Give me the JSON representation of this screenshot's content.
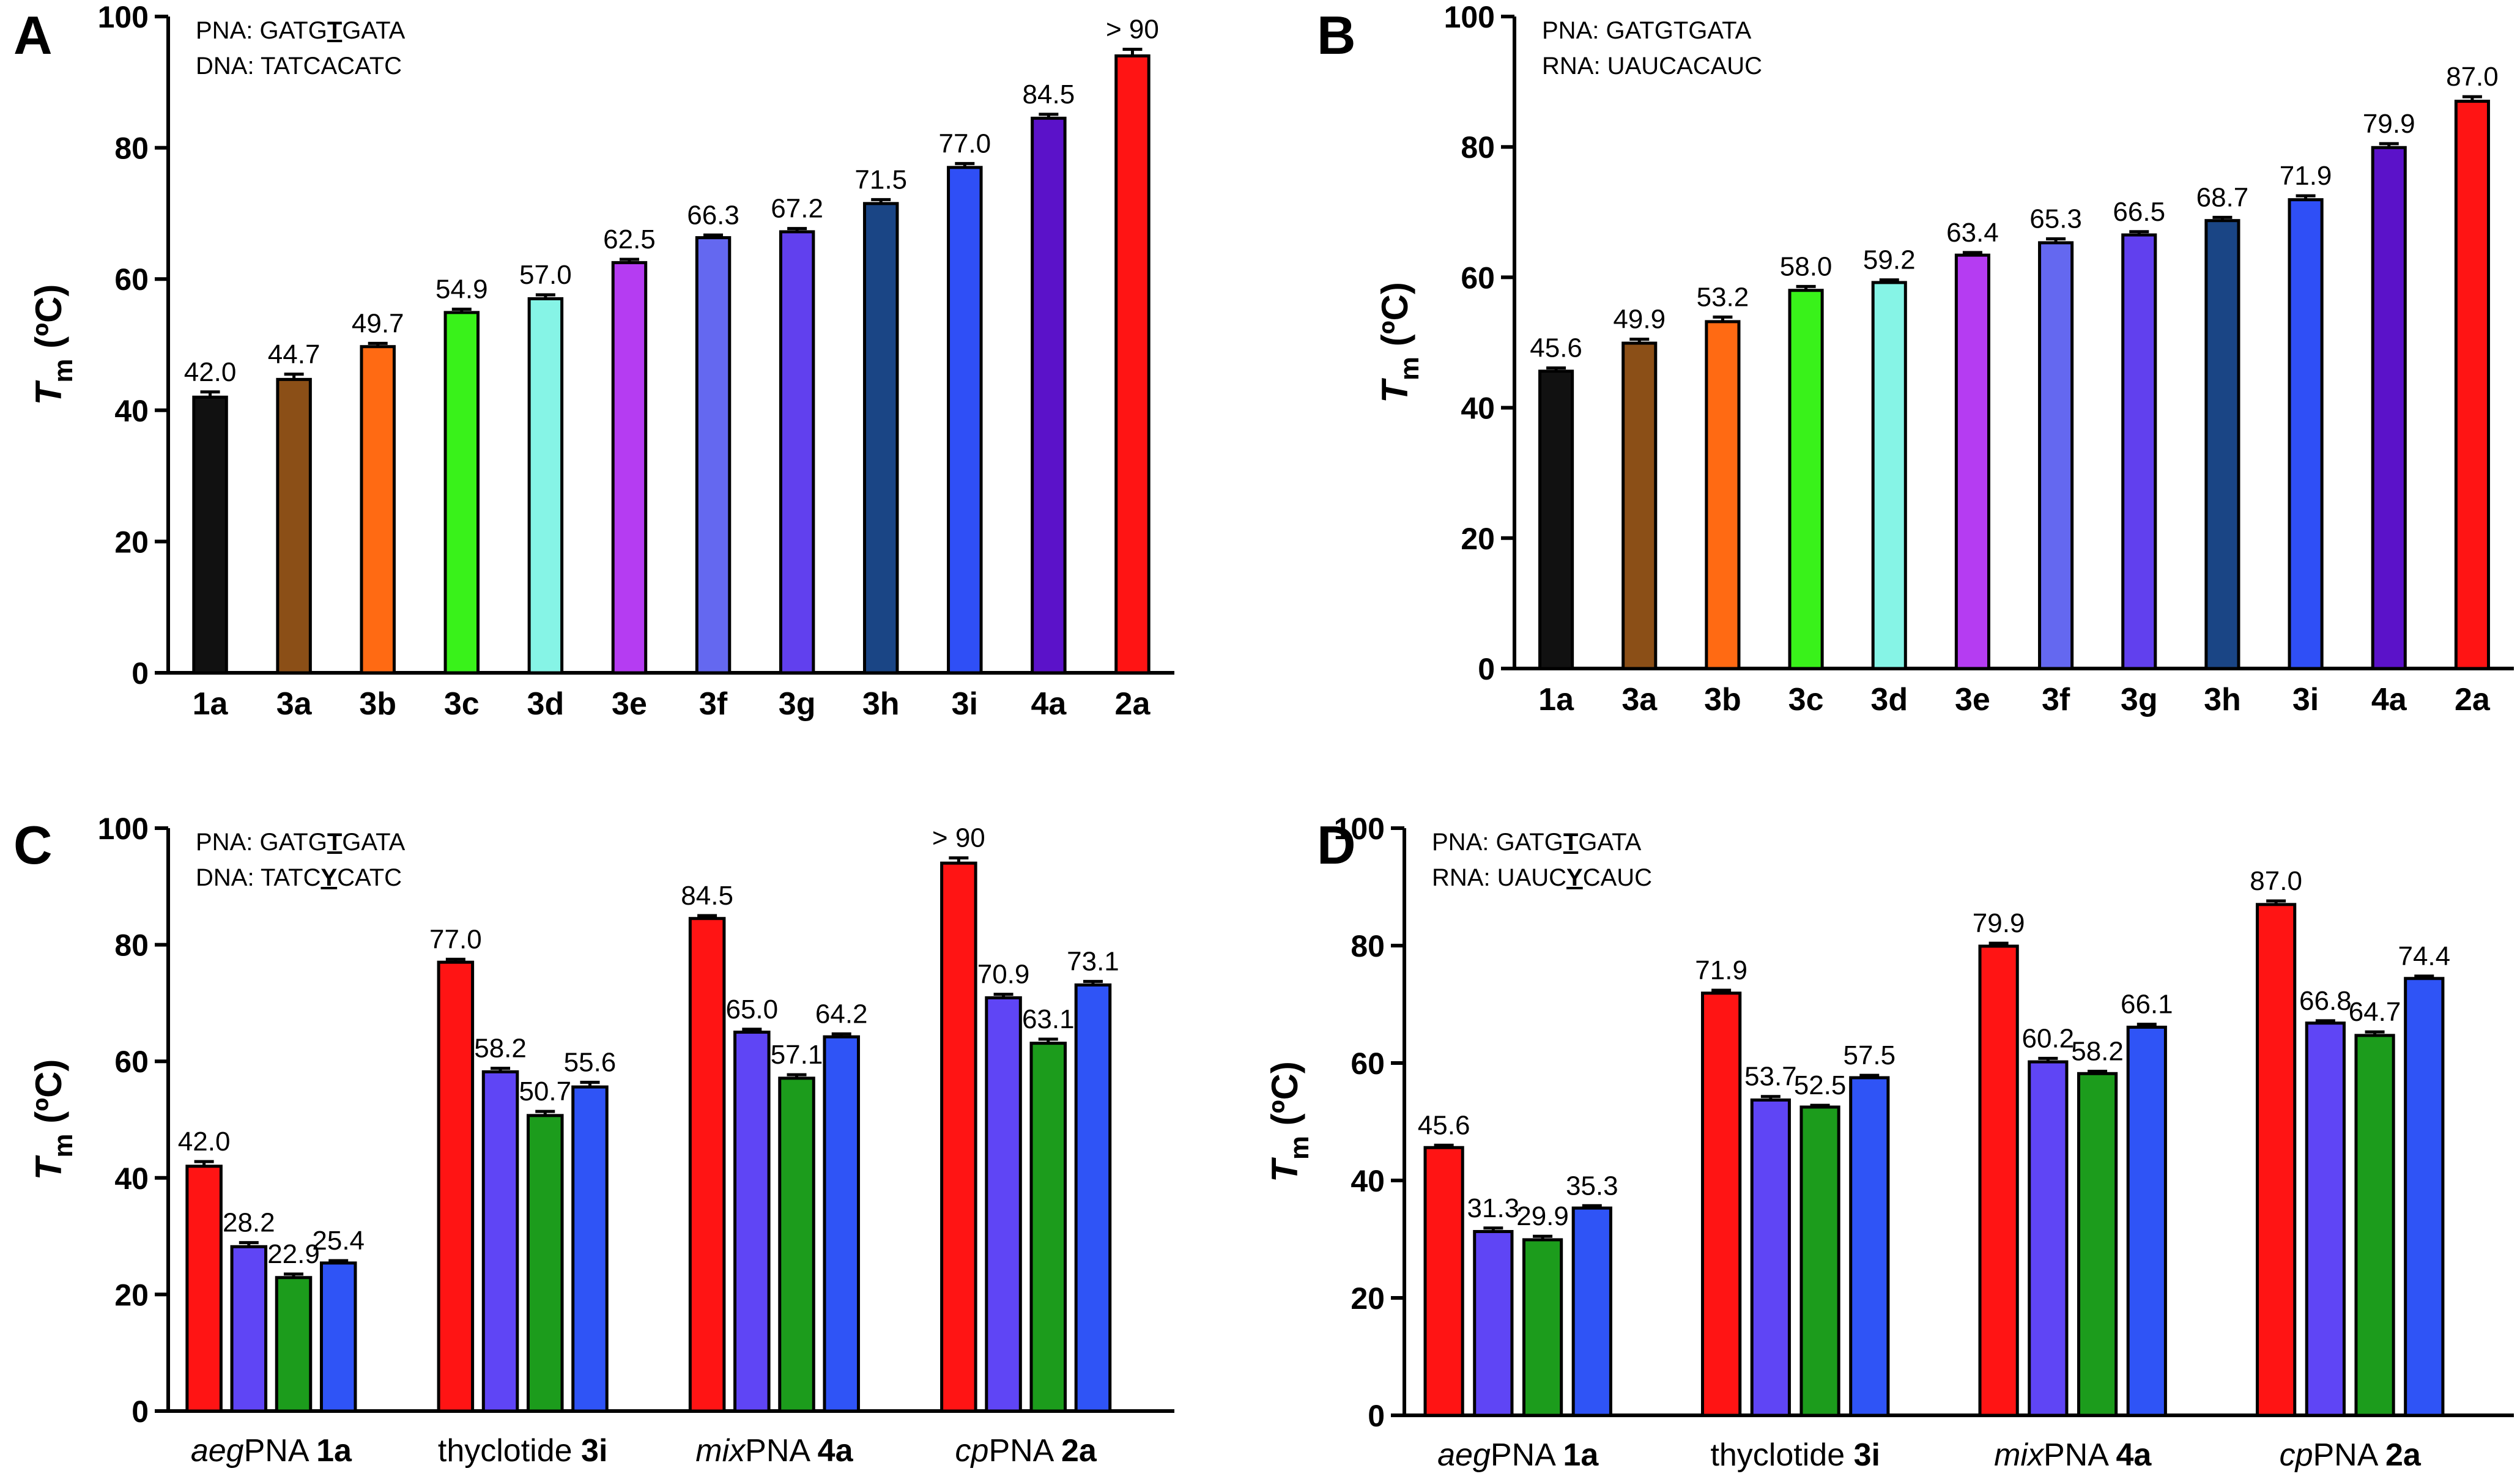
{
  "figure": {
    "y_label_main": "T",
    "y_label_sub": "m",
    "y_label_unit": " (ºC)"
  },
  "chart_data": [
    {
      "panel": "A",
      "type": "bar",
      "seq_lines": [
        {
          "prefix": "PNA: GATG",
          "mark": "T",
          "suffix": "GATA"
        },
        {
          "prefix": "DNA: TATCACATC",
          "mark": "",
          "suffix": ""
        }
      ],
      "categories": [
        "1a",
        "3a",
        "3b",
        "3c",
        "3d",
        "3e",
        "3f",
        "3g",
        "3h",
        "3i",
        "4a",
        "2a"
      ],
      "values": [
        42.0,
        44.7,
        49.7,
        54.9,
        57.0,
        62.5,
        66.3,
        67.2,
        71.5,
        77.0,
        84.5,
        94.0
      ],
      "errors": [
        0.8,
        0.8,
        0.5,
        0.5,
        0.6,
        0.5,
        0.4,
        0.5,
        0.6,
        0.6,
        0.6,
        1.0
      ],
      "labels": [
        "42.0",
        "44.7",
        "49.7",
        "54.9",
        "57.0",
        "62.5",
        "66.3",
        "67.2",
        "71.5",
        "77.0",
        "84.5",
        "> 90"
      ],
      "colors": [
        "#111111",
        "#8b4f17",
        "#ff6a13",
        "#39f21a",
        "#86f4e6",
        "#b53cf2",
        "#6468f0",
        "#6140ee",
        "#1a4585",
        "#2f4ff6",
        "#5b12c9",
        "#ff1414"
      ],
      "ylim": [
        0,
        100
      ],
      "yticks": [
        0,
        20,
        40,
        60,
        80,
        100
      ],
      "xlabel": "",
      "ylabel": "Tm (ºC)"
    },
    {
      "panel": "B",
      "type": "bar",
      "seq_lines": [
        {
          "prefix": "PNA: GATGTGATA",
          "mark": "",
          "suffix": ""
        },
        {
          "prefix": "RNA: UAUCACAUC",
          "mark": "",
          "suffix": ""
        }
      ],
      "categories": [
        "1a",
        "3a",
        "3b",
        "3c",
        "3d",
        "3e",
        "3f",
        "3g",
        "3h",
        "3i",
        "4a",
        "2a"
      ],
      "values": [
        45.6,
        49.9,
        53.2,
        58.0,
        59.2,
        63.4,
        65.3,
        66.5,
        68.7,
        71.9,
        79.9,
        87.0
      ],
      "errors": [
        0.5,
        0.6,
        0.7,
        0.6,
        0.4,
        0.4,
        0.6,
        0.5,
        0.5,
        0.6,
        0.6,
        0.7
      ],
      "labels": [
        "45.6",
        "49.9",
        "53.2",
        "58.0",
        "59.2",
        "63.4",
        "65.3",
        "66.5",
        "68.7",
        "71.9",
        "79.9",
        "87.0"
      ],
      "colors": [
        "#111111",
        "#8b4f17",
        "#ff6a13",
        "#39f21a",
        "#86f4e6",
        "#b53cf2",
        "#6468f0",
        "#6140ee",
        "#1a4585",
        "#2f4ff6",
        "#5b12c9",
        "#ff1414"
      ],
      "ylim": [
        0,
        100
      ],
      "yticks": [
        0,
        20,
        40,
        60,
        80,
        100
      ],
      "xlabel": "",
      "ylabel": "Tm (ºC)"
    },
    {
      "panel": "C",
      "type": "bar",
      "seq_lines": [
        {
          "prefix": "PNA: GATG",
          "mark": "T",
          "suffix": "GATA"
        },
        {
          "prefix": "DNA: TATC",
          "mark": "Y",
          "suffix": "CATC"
        }
      ],
      "groups": [
        {
          "name_pre": "aeg",
          "name_mid": "PNA ",
          "name_bold": "1a"
        },
        {
          "name_pre": "",
          "name_mid": "thyclotide ",
          "name_bold": "3i"
        },
        {
          "name_pre": "mix",
          "name_mid": "PNA ",
          "name_bold": "4a"
        },
        {
          "name_pre": "cp",
          "name_mid": "PNA ",
          "name_bold": "2a"
        }
      ],
      "series_colors": [
        "#ff1414",
        "#5f45f5",
        "#1c9c1c",
        "#2f54f6"
      ],
      "values": [
        [
          42.0,
          28.2,
          22.9,
          25.4
        ],
        [
          77.0,
          58.2,
          50.7,
          55.6
        ],
        [
          84.5,
          65.0,
          57.1,
          64.2
        ],
        [
          94.0,
          70.9,
          63.1,
          73.1
        ]
      ],
      "errors": [
        [
          0.8,
          0.7,
          0.6,
          0.4
        ],
        [
          0.5,
          0.6,
          0.7,
          0.8
        ],
        [
          0.5,
          0.5,
          0.6,
          0.5
        ],
        [
          0.9,
          0.6,
          0.7,
          0.6
        ]
      ],
      "labels": [
        [
          "42.0",
          "28.2",
          "22.9",
          "25.4"
        ],
        [
          "77.0",
          "58.2",
          "50.7",
          "55.6"
        ],
        [
          "84.5",
          "65.0",
          "57.1",
          "64.2"
        ],
        [
          "> 90",
          "70.9",
          "63.1",
          "73.1"
        ]
      ],
      "ylim": [
        0,
        100
      ],
      "yticks": [
        0,
        20,
        40,
        60,
        80,
        100
      ],
      "xlabel": "",
      "ylabel": "Tm (ºC)"
    },
    {
      "panel": "D",
      "type": "bar",
      "seq_lines": [
        {
          "prefix": "PNA: GATG",
          "mark": "T",
          "suffix": "GATA"
        },
        {
          "prefix": "RNA: UAUC",
          "mark": "Y",
          "suffix": "CAUC"
        }
      ],
      "groups": [
        {
          "name_pre": "aeg",
          "name_mid": "PNA ",
          "name_bold": "1a"
        },
        {
          "name_pre": "",
          "name_mid": "thyclotide ",
          "name_bold": "3i"
        },
        {
          "name_pre": "mix",
          "name_mid": "PNA ",
          "name_bold": "4a"
        },
        {
          "name_pre": "cp",
          "name_mid": "PNA ",
          "name_bold": "2a"
        }
      ],
      "series_colors": [
        "#ff1414",
        "#5f45f5",
        "#1c9c1c",
        "#2f54f6"
      ],
      "values": [
        [
          45.6,
          31.3,
          29.9,
          35.3
        ],
        [
          71.9,
          53.7,
          52.5,
          57.5
        ],
        [
          79.9,
          60.2,
          58.2,
          66.1
        ],
        [
          87.0,
          66.8,
          64.7,
          74.4
        ]
      ],
      "errors": [
        [
          0.4,
          0.6,
          0.6,
          0.4
        ],
        [
          0.5,
          0.6,
          0.3,
          0.4
        ],
        [
          0.5,
          0.6,
          0.4,
          0.5
        ],
        [
          0.6,
          0.4,
          0.6,
          0.4
        ]
      ],
      "labels": [
        [
          "45.6",
          "31.3",
          "29.9",
          "35.3"
        ],
        [
          "71.9",
          "53.7",
          "52.5",
          "57.5"
        ],
        [
          "79.9",
          "60.2",
          "58.2",
          "66.1"
        ],
        [
          "87.0",
          "66.8",
          "64.7",
          "74.4"
        ]
      ],
      "ylim": [
        0,
        100
      ],
      "yticks": [
        0,
        20,
        40,
        60,
        80,
        100
      ],
      "xlabel": "",
      "ylabel": "Tm (ºC)"
    }
  ]
}
